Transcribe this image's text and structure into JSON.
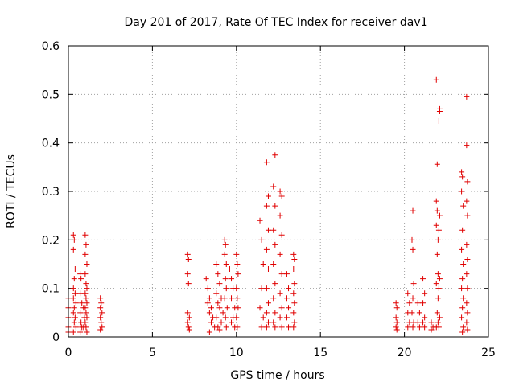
{
  "chart_data": {
    "type": "scatter",
    "title": "Day 201 of 2017, Rate Of TEC Index for receiver dav1",
    "xlabel": "GPS time / hours",
    "ylabel": "ROTI / TECUs",
    "xlim": [
      0,
      25
    ],
    "ylim": [
      0,
      0.6
    ],
    "x_ticks": [
      "0",
      "5",
      "10",
      "15",
      "20",
      "25"
    ],
    "y_ticks": [
      "0",
      "0.1",
      "0.2",
      "0.3",
      "0.4",
      "0.5",
      "0.6"
    ],
    "grid": true,
    "legend": "none",
    "marker": "plus",
    "color": "#e00000",
    "series": [
      {
        "points": [
          [
            0.0,
            0.08
          ],
          [
            0.0,
            0.06
          ],
          [
            0.0,
            0.04
          ],
          [
            0.0,
            0.02
          ],
          [
            0.0,
            0.01
          ],
          [
            0.3,
            0.21
          ],
          [
            0.35,
            0.2
          ],
          [
            0.3,
            0.18
          ],
          [
            0.4,
            0.14
          ],
          [
            0.35,
            0.12
          ],
          [
            0.3,
            0.1
          ],
          [
            0.4,
            0.09
          ],
          [
            0.3,
            0.08
          ],
          [
            0.45,
            0.07
          ],
          [
            0.35,
            0.06
          ],
          [
            0.3,
            0.05
          ],
          [
            0.4,
            0.04
          ],
          [
            0.35,
            0.03
          ],
          [
            0.45,
            0.02
          ],
          [
            0.3,
            0.01
          ],
          [
            0.7,
            0.13
          ],
          [
            0.75,
            0.12
          ],
          [
            0.7,
            0.09
          ],
          [
            0.8,
            0.07
          ],
          [
            0.7,
            0.05
          ],
          [
            0.75,
            0.03
          ],
          [
            0.8,
            0.02
          ],
          [
            0.7,
            0.01
          ],
          [
            1.0,
            0.21
          ],
          [
            1.05,
            0.19
          ],
          [
            1.0,
            0.17
          ],
          [
            1.1,
            0.15
          ],
          [
            1.0,
            0.13
          ],
          [
            1.05,
            0.11
          ],
          [
            1.1,
            0.1
          ],
          [
            1.0,
            0.09
          ],
          [
            1.05,
            0.08
          ],
          [
            1.1,
            0.07
          ],
          [
            1.0,
            0.06
          ],
          [
            1.05,
            0.05
          ],
          [
            1.1,
            0.04
          ],
          [
            1.0,
            0.03
          ],
          [
            1.05,
            0.02
          ],
          [
            1.1,
            0.01
          ],
          [
            0.9,
            0.06
          ],
          [
            0.95,
            0.04
          ],
          [
            0.9,
            0.02
          ],
          [
            1.9,
            0.08
          ],
          [
            1.95,
            0.07
          ],
          [
            1.9,
            0.06
          ],
          [
            2.0,
            0.05
          ],
          [
            1.9,
            0.04
          ],
          [
            1.95,
            0.03
          ],
          [
            2.0,
            0.02
          ],
          [
            1.9,
            0.015
          ],
          [
            7.1,
            0.17
          ],
          [
            7.15,
            0.16
          ],
          [
            7.1,
            0.13
          ],
          [
            7.15,
            0.11
          ],
          [
            7.1,
            0.05
          ],
          [
            7.2,
            0.04
          ],
          [
            7.1,
            0.03
          ],
          [
            7.15,
            0.02
          ],
          [
            7.2,
            0.015
          ],
          [
            8.2,
            0.12
          ],
          [
            8.3,
            0.1
          ],
          [
            8.4,
            0.08
          ],
          [
            8.3,
            0.07
          ],
          [
            8.5,
            0.06
          ],
          [
            8.4,
            0.05
          ],
          [
            8.6,
            0.04
          ],
          [
            8.5,
            0.03
          ],
          [
            8.7,
            0.02
          ],
          [
            8.4,
            0.01
          ],
          [
            8.8,
            0.15
          ],
          [
            8.9,
            0.13
          ],
          [
            9.0,
            0.11
          ],
          [
            8.8,
            0.09
          ],
          [
            9.1,
            0.08
          ],
          [
            8.9,
            0.07
          ],
          [
            9.0,
            0.06
          ],
          [
            9.2,
            0.05
          ],
          [
            8.8,
            0.04
          ],
          [
            9.1,
            0.03
          ],
          [
            8.9,
            0.02
          ],
          [
            9.0,
            0.015
          ],
          [
            9.3,
            0.2
          ],
          [
            9.35,
            0.19
          ],
          [
            9.3,
            0.17
          ],
          [
            9.4,
            0.15
          ],
          [
            9.35,
            0.12
          ],
          [
            9.4,
            0.1
          ],
          [
            9.3,
            0.08
          ],
          [
            9.45,
            0.06
          ],
          [
            9.35,
            0.04
          ],
          [
            9.4,
            0.02
          ],
          [
            9.6,
            0.14
          ],
          [
            9.7,
            0.12
          ],
          [
            9.8,
            0.1
          ],
          [
            9.7,
            0.08
          ],
          [
            9.9,
            0.06
          ],
          [
            9.8,
            0.04
          ],
          [
            9.7,
            0.03
          ],
          [
            9.9,
            0.02
          ],
          [
            10.0,
            0.17
          ],
          [
            10.05,
            0.15
          ],
          [
            10.1,
            0.13
          ],
          [
            10.0,
            0.1
          ],
          [
            10.05,
            0.08
          ],
          [
            10.1,
            0.06
          ],
          [
            10.0,
            0.04
          ],
          [
            10.05,
            0.02
          ],
          [
            11.4,
            0.24
          ],
          [
            11.5,
            0.2
          ],
          [
            11.6,
            0.15
          ],
          [
            11.5,
            0.1
          ],
          [
            11.4,
            0.06
          ],
          [
            11.6,
            0.04
          ],
          [
            11.5,
            0.02
          ],
          [
            11.8,
            0.36
          ],
          [
            11.9,
            0.29
          ],
          [
            11.8,
            0.27
          ],
          [
            11.9,
            0.22
          ],
          [
            11.8,
            0.18
          ],
          [
            11.9,
            0.14
          ],
          [
            11.8,
            0.1
          ],
          [
            11.9,
            0.07
          ],
          [
            11.8,
            0.05
          ],
          [
            11.9,
            0.03
          ],
          [
            11.8,
            0.02
          ],
          [
            12.3,
            0.375
          ],
          [
            12.2,
            0.31
          ],
          [
            12.3,
            0.27
          ],
          [
            12.2,
            0.22
          ],
          [
            12.3,
            0.19
          ],
          [
            12.2,
            0.15
          ],
          [
            12.3,
            0.11
          ],
          [
            12.2,
            0.08
          ],
          [
            12.3,
            0.05
          ],
          [
            12.2,
            0.03
          ],
          [
            12.3,
            0.02
          ],
          [
            12.6,
            0.3
          ],
          [
            12.7,
            0.29
          ],
          [
            12.6,
            0.25
          ],
          [
            12.7,
            0.21
          ],
          [
            12.6,
            0.17
          ],
          [
            12.7,
            0.13
          ],
          [
            12.6,
            0.09
          ],
          [
            12.7,
            0.06
          ],
          [
            12.6,
            0.04
          ],
          [
            12.7,
            0.02
          ],
          [
            13.0,
            0.13
          ],
          [
            13.1,
            0.1
          ],
          [
            13.0,
            0.08
          ],
          [
            13.1,
            0.06
          ],
          [
            13.0,
            0.04
          ],
          [
            13.1,
            0.02
          ],
          [
            13.4,
            0.17
          ],
          [
            13.45,
            0.16
          ],
          [
            13.4,
            0.14
          ],
          [
            13.45,
            0.11
          ],
          [
            13.4,
            0.09
          ],
          [
            13.45,
            0.07
          ],
          [
            13.4,
            0.05
          ],
          [
            13.45,
            0.03
          ],
          [
            13.4,
            0.02
          ],
          [
            19.5,
            0.07
          ],
          [
            19.55,
            0.06
          ],
          [
            19.5,
            0.04
          ],
          [
            19.55,
            0.03
          ],
          [
            19.5,
            0.02
          ],
          [
            19.55,
            0.015
          ],
          [
            20.2,
            0.09
          ],
          [
            20.3,
            0.07
          ],
          [
            20.2,
            0.05
          ],
          [
            20.3,
            0.03
          ],
          [
            20.2,
            0.02
          ],
          [
            20.5,
            0.26
          ],
          [
            20.45,
            0.2
          ],
          [
            20.5,
            0.18
          ],
          [
            20.55,
            0.11
          ],
          [
            20.5,
            0.08
          ],
          [
            20.45,
            0.05
          ],
          [
            20.55,
            0.03
          ],
          [
            20.5,
            0.02
          ],
          [
            20.8,
            0.07
          ],
          [
            20.9,
            0.05
          ],
          [
            20.8,
            0.03
          ],
          [
            20.9,
            0.02
          ],
          [
            21.1,
            0.12
          ],
          [
            21.2,
            0.09
          ],
          [
            21.1,
            0.07
          ],
          [
            21.2,
            0.04
          ],
          [
            21.1,
            0.03
          ],
          [
            21.2,
            0.02
          ],
          [
            21.6,
            0.03
          ],
          [
            21.7,
            0.02
          ],
          [
            21.6,
            0.015
          ],
          [
            21.9,
            0.53
          ],
          [
            21.95,
            0.356
          ],
          [
            21.9,
            0.28
          ],
          [
            21.95,
            0.26
          ],
          [
            21.9,
            0.23
          ],
          [
            22.0,
            0.2
          ],
          [
            21.95,
            0.17
          ],
          [
            22.0,
            0.13
          ],
          [
            21.9,
            0.11
          ],
          [
            22.0,
            0.08
          ],
          [
            21.95,
            0.05
          ],
          [
            22.0,
            0.03
          ],
          [
            21.9,
            0.02
          ],
          [
            22.1,
            0.47
          ],
          [
            22.1,
            0.465
          ],
          [
            22.05,
            0.445
          ],
          [
            22.1,
            0.25
          ],
          [
            22.05,
            0.22
          ],
          [
            22.1,
            0.12
          ],
          [
            22.05,
            0.1
          ],
          [
            22.1,
            0.04
          ],
          [
            22.05,
            0.02
          ],
          [
            23.4,
            0.34
          ],
          [
            23.45,
            0.33
          ],
          [
            23.4,
            0.3
          ],
          [
            23.5,
            0.27
          ],
          [
            23.45,
            0.22
          ],
          [
            23.4,
            0.18
          ],
          [
            23.5,
            0.15
          ],
          [
            23.45,
            0.12
          ],
          [
            23.4,
            0.1
          ],
          [
            23.5,
            0.08
          ],
          [
            23.45,
            0.06
          ],
          [
            23.4,
            0.04
          ],
          [
            23.5,
            0.02
          ],
          [
            23.45,
            0.01
          ],
          [
            23.7,
            0.495
          ],
          [
            23.7,
            0.395
          ],
          [
            23.75,
            0.32
          ],
          [
            23.7,
            0.28
          ],
          [
            23.75,
            0.25
          ],
          [
            23.7,
            0.19
          ],
          [
            23.75,
            0.16
          ],
          [
            23.7,
            0.13
          ],
          [
            23.75,
            0.1
          ],
          [
            23.7,
            0.07
          ],
          [
            23.75,
            0.05
          ],
          [
            23.7,
            0.03
          ],
          [
            23.75,
            0.015
          ]
        ]
      }
    ]
  }
}
